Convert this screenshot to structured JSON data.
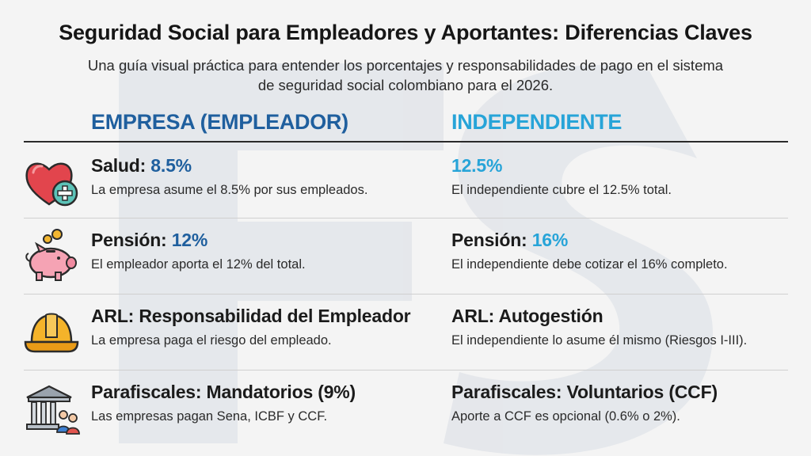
{
  "header": {
    "title": "Seguridad Social para Empleadores y Aportantes: Diferencias Claves",
    "subtitle_line1": "Una guía visual práctica para entender los porcentajes y responsabilidades de pago en el sistema",
    "subtitle_line2": "de seguridad social colombiano para el 2026."
  },
  "columns": {
    "empleador": "EMPRESA (EMPLEADOR)",
    "independiente": "INDEPENDIENTE"
  },
  "colors": {
    "empleador_accent": "#1f5f9e",
    "independiente_accent": "#27a4d8"
  },
  "rows": [
    {
      "icon": "heart-plus-icon",
      "left": {
        "label": "Salud: ",
        "value": "8.5%",
        "desc": "La empresa asume el 8.5% por sus empleados."
      },
      "right": {
        "label": "",
        "value": "12.5%",
        "desc": "El independiente cubre el 12.5% total."
      }
    },
    {
      "icon": "piggy-bank-icon",
      "left": {
        "label": "Pensión: ",
        "value": "12%",
        "desc": "El empleador aporta el 12% del total."
      },
      "right": {
        "label": "Pensión: ",
        "value": "16%",
        "desc": "El independiente debe cotizar el 16% completo."
      }
    },
    {
      "icon": "hard-hat-icon",
      "left": {
        "label": "ARL: Responsabilidad del Empleador",
        "value": "",
        "desc": "La empresa paga el riesgo del empleado."
      },
      "right": {
        "label": "ARL: Autogestión",
        "value": "",
        "desc": "El independiente lo asume él mismo (Riesgos I-III)."
      }
    },
    {
      "icon": "institution-people-icon",
      "left": {
        "label": "Parafiscales: Mandatorios (9%)",
        "value": "",
        "desc": "Las empresas pagan Sena, ICBF y CCF."
      },
      "right": {
        "label": "Parafiscales: Voluntarios (CCF)",
        "value": "",
        "desc": "Aporte a CCF es opcional (0.6% o 2%)."
      }
    }
  ]
}
